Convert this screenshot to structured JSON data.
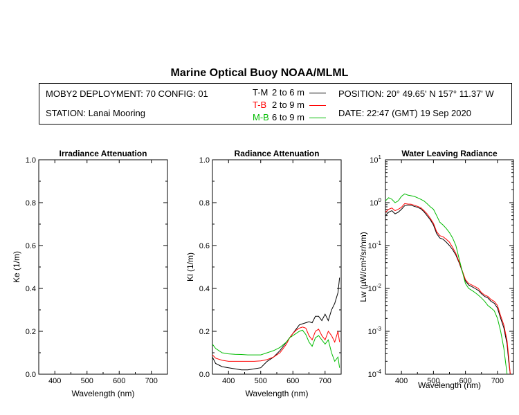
{
  "title": "Marine Optical Buoy NOAA/MLML",
  "info": {
    "deployment": "MOBY2 DEPLOYMENT: 70 CONFIG: 01",
    "station": "STATION: Lanai Mooring",
    "position": "POSITION: 20° 49.65' N   157° 11.37' W",
    "date": "DATE: 22:47 (GMT) 19 Sep 2020"
  },
  "legend": [
    {
      "name": "T-M",
      "range": "2 to 6  m",
      "color": "#000000"
    },
    {
      "name": "T-B",
      "range": "2 to 9  m",
      "color": "#ff0000"
    },
    {
      "name": "M-B",
      "range": "6 to 9  m",
      "color": "#00bb00"
    }
  ],
  "chart_data": [
    {
      "type": "line",
      "title": "Irradiance Attenuation",
      "xlabel": "Wavelength (nm)",
      "ylabel": "Ke  (1/m)",
      "xlim": [
        350,
        750
      ],
      "ylim": [
        0,
        1
      ],
      "xticks": [
        400,
        500,
        600,
        700
      ],
      "yticks": [
        0.0,
        0.2,
        0.4,
        0.6,
        0.8,
        1.0
      ],
      "yticklabels": [
        "0.0",
        "0.2",
        "0.4",
        "0.6",
        "0.8",
        "1.0"
      ],
      "series": []
    },
    {
      "type": "line",
      "title": "Radiance Attenuation",
      "xlabel": "Wavelength (nm)",
      "ylabel": "Kl  (1/m)",
      "xlim": [
        350,
        750
      ],
      "ylim": [
        0,
        1
      ],
      "xticks": [
        400,
        500,
        600,
        700
      ],
      "yticks": [
        0.0,
        0.2,
        0.4,
        0.6,
        0.8,
        1.0
      ],
      "yticklabels": [
        "0.0",
        "0.2",
        "0.4",
        "0.6",
        "0.8",
        "1.0"
      ],
      "series": [
        {
          "name": "T-M",
          "color": "#000000",
          "x": [
            350,
            360,
            380,
            400,
            420,
            440,
            460,
            480,
            500,
            510,
            520,
            540,
            560,
            580,
            590,
            600,
            610,
            620,
            630,
            640,
            650,
            660,
            670,
            680,
            690,
            700,
            710,
            720,
            730,
            740,
            745
          ],
          "y": [
            0.08,
            0.05,
            0.035,
            0.03,
            0.025,
            0.02,
            0.02,
            0.025,
            0.03,
            0.045,
            0.06,
            0.08,
            0.11,
            0.15,
            0.17,
            0.19,
            0.21,
            0.23,
            0.235,
            0.24,
            0.245,
            0.24,
            0.27,
            0.27,
            0.25,
            0.28,
            0.25,
            0.3,
            0.33,
            0.38,
            0.45
          ]
        },
        {
          "name": "T-B",
          "color": "#ff0000",
          "x": [
            350,
            360,
            380,
            400,
            420,
            440,
            460,
            480,
            500,
            520,
            540,
            560,
            580,
            590,
            600,
            610,
            620,
            630,
            640,
            650,
            660,
            670,
            680,
            690,
            700,
            710,
            720,
            730,
            740,
            745
          ],
          "y": [
            0.09,
            0.075,
            0.065,
            0.06,
            0.06,
            0.06,
            0.06,
            0.06,
            0.062,
            0.068,
            0.08,
            0.1,
            0.14,
            0.17,
            0.19,
            0.205,
            0.215,
            0.22,
            0.215,
            0.18,
            0.16,
            0.2,
            0.21,
            0.18,
            0.16,
            0.2,
            0.18,
            0.15,
            0.2,
            0.15
          ]
        },
        {
          "name": "M-B",
          "color": "#00bb00",
          "x": [
            350,
            360,
            380,
            400,
            420,
            440,
            460,
            480,
            500,
            520,
            540,
            560,
            580,
            590,
            600,
            610,
            620,
            630,
            640,
            650,
            660,
            670,
            680,
            690,
            700,
            710,
            720,
            730,
            740,
            745
          ],
          "y": [
            0.14,
            0.12,
            0.1,
            0.095,
            0.093,
            0.092,
            0.09,
            0.09,
            0.09,
            0.1,
            0.11,
            0.125,
            0.15,
            0.17,
            0.18,
            0.19,
            0.2,
            0.205,
            0.185,
            0.15,
            0.13,
            0.17,
            0.18,
            0.16,
            0.14,
            0.16,
            0.1,
            0.06,
            0.08,
            0.03
          ]
        }
      ]
    },
    {
      "type": "line",
      "title": "Water Leaving Radiance",
      "xlabel": "Wavelength (nm)",
      "ylabel": "Lw  (µW/cm²/sr/nm)",
      "yscale": "log",
      "xlim": [
        350,
        750
      ],
      "ylim": [
        0.0001,
        10
      ],
      "xticks": [
        400,
        500,
        600,
        700
      ],
      "yticks": [
        0.0001,
        0.001,
        0.01,
        0.1,
        1,
        10
      ],
      "yticklabels": [
        {
          "base": "10",
          "exp": "-4"
        },
        {
          "base": "10",
          "exp": "-3"
        },
        {
          "base": "10",
          "exp": "-2"
        },
        {
          "base": "10",
          "exp": "-1"
        },
        {
          "base": "10",
          "exp": "0"
        },
        {
          "base": "10",
          "exp": "1"
        }
      ],
      "series": [
        {
          "name": "black",
          "color": "#000000",
          "x": [
            350,
            360,
            370,
            380,
            390,
            400,
            410,
            420,
            430,
            440,
            450,
            460,
            470,
            480,
            490,
            500,
            510,
            520,
            530,
            540,
            550,
            560,
            570,
            580,
            590,
            600,
            610,
            620,
            630,
            640,
            650,
            660,
            670,
            680,
            690,
            700,
            710,
            720,
            730,
            735,
            740
          ],
          "y": [
            0.5,
            0.6,
            0.65,
            0.55,
            0.6,
            0.7,
            0.85,
            0.88,
            0.87,
            0.82,
            0.78,
            0.72,
            0.62,
            0.5,
            0.4,
            0.3,
            0.19,
            0.15,
            0.14,
            0.12,
            0.1,
            0.08,
            0.06,
            0.04,
            0.025,
            0.015,
            0.012,
            0.011,
            0.01,
            0.009,
            0.0075,
            0.0065,
            0.006,
            0.005,
            0.0045,
            0.0035,
            0.002,
            0.0012,
            0.0005,
            0.0002,
            0.0001
          ]
        },
        {
          "name": "red",
          "color": "#ff0000",
          "x": [
            350,
            360,
            370,
            380,
            390,
            400,
            410,
            420,
            430,
            440,
            450,
            460,
            470,
            480,
            490,
            500,
            510,
            520,
            530,
            540,
            550,
            560,
            570,
            580,
            590,
            600,
            610,
            620,
            630,
            640,
            650,
            660,
            670,
            680,
            690,
            700,
            710,
            720,
            730,
            735,
            740
          ],
          "y": [
            0.6,
            0.7,
            0.75,
            0.65,
            0.7,
            0.78,
            0.95,
            0.93,
            0.92,
            0.87,
            0.82,
            0.77,
            0.66,
            0.55,
            0.43,
            0.33,
            0.21,
            0.17,
            0.16,
            0.14,
            0.12,
            0.09,
            0.065,
            0.042,
            0.026,
            0.016,
            0.013,
            0.012,
            0.011,
            0.01,
            0.008,
            0.007,
            0.0065,
            0.0055,
            0.005,
            0.004,
            0.0023,
            0.0014,
            0.0006,
            0.00025,
            0.0001
          ]
        },
        {
          "name": "green",
          "color": "#00bb00",
          "x": [
            350,
            360,
            370,
            380,
            390,
            400,
            410,
            420,
            430,
            440,
            450,
            460,
            470,
            480,
            490,
            500,
            510,
            520,
            530,
            540,
            550,
            560,
            570,
            580,
            590,
            600,
            610,
            620,
            630,
            640,
            650,
            660,
            670,
            680,
            690,
            700,
            710,
            720,
            725,
            730
          ],
          "y": [
            1.1,
            1.3,
            1.2,
            1.0,
            1.1,
            1.4,
            1.6,
            1.5,
            1.45,
            1.4,
            1.3,
            1.2,
            1.1,
            0.95,
            0.8,
            0.7,
            0.5,
            0.35,
            0.3,
            0.25,
            0.2,
            0.15,
            0.1,
            0.05,
            0.025,
            0.013,
            0.01,
            0.009,
            0.008,
            0.007,
            0.006,
            0.005,
            0.004,
            0.0035,
            0.003,
            0.002,
            0.001,
            0.0004,
            0.0002,
            0.0001
          ]
        }
      ]
    }
  ]
}
